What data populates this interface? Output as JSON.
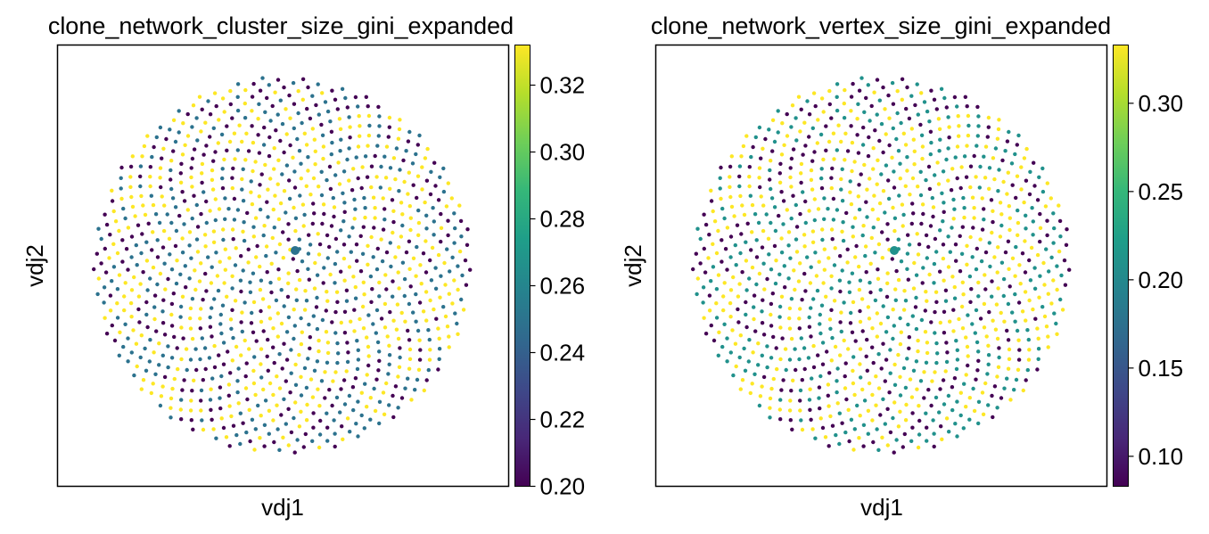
{
  "chart_data": [
    {
      "type": "scatter",
      "title": "clone_network_cluster_size_gini_expanded",
      "xlabel": "vdj1",
      "ylabel": "vdj2",
      "colorbar": {
        "colormap": "viridis",
        "range": [
          0.2,
          0.332
        ],
        "ticks": [
          "0.20",
          "0.22",
          "0.24",
          "0.26",
          "0.28",
          "0.30",
          "0.32"
        ]
      },
      "value_groups": [
        {
          "value": 0.2,
          "color": "#440154",
          "share": 0.25
        },
        {
          "value": 0.255,
          "color": "#2c728e",
          "share": 0.35
        },
        {
          "value": 0.332,
          "color": "#fde725",
          "share": 0.4
        }
      ],
      "grid": false,
      "legend": "none"
    },
    {
      "type": "scatter",
      "title": "clone_network_vertex_size_gini_expanded",
      "xlabel": "vdj1",
      "ylabel": "vdj2",
      "colorbar": {
        "colormap": "viridis",
        "range": [
          0.083,
          0.333
        ],
        "ticks": [
          "0.10",
          "0.15",
          "0.20",
          "0.25",
          "0.30"
        ]
      },
      "value_groups": [
        {
          "value": 0.083,
          "color": "#440154",
          "share": 0.25
        },
        {
          "value": 0.2,
          "color": "#21918c",
          "share": 0.35
        },
        {
          "value": 0.333,
          "color": "#fde725",
          "share": 0.4
        }
      ],
      "grid": false,
      "legend": "none"
    }
  ],
  "colors": {
    "viridis": [
      "#440154",
      "#482878",
      "#3e4989",
      "#31688e",
      "#26828e",
      "#1f9e89",
      "#35b779",
      "#6ece58",
      "#b5de2b",
      "#fde725"
    ]
  }
}
